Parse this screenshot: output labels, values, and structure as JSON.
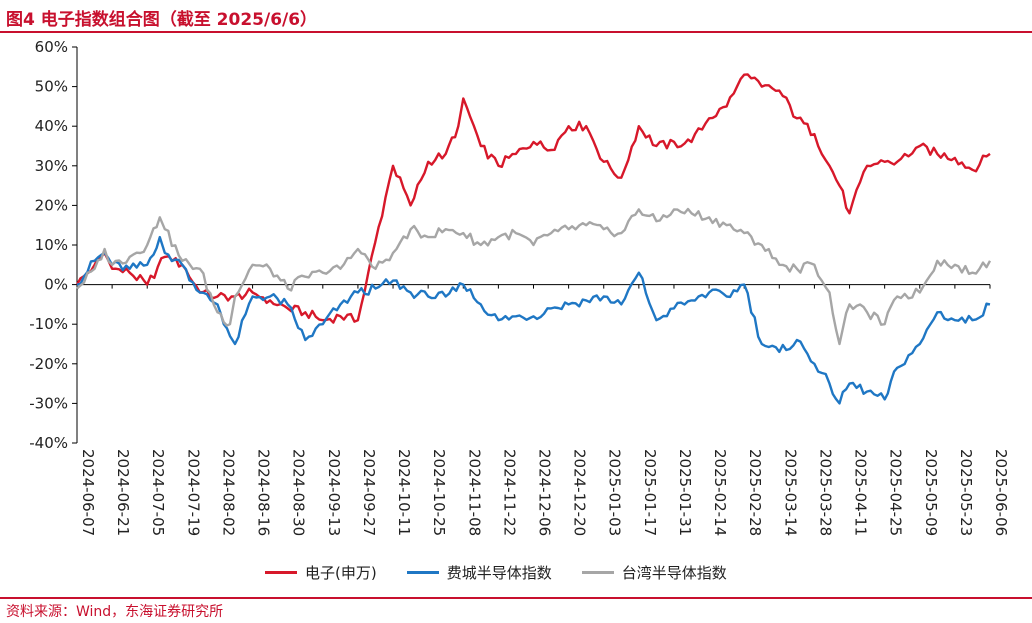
{
  "title": "图4  电子指数组合图（截至 2025/6/6）",
  "source": "资料来源：Wind，东海证券研究所",
  "chart_data": {
    "type": "line",
    "ylim": [
      -40,
      60
    ],
    "yticks": [
      -40,
      -30,
      -20,
      -10,
      0,
      10,
      20,
      30,
      40,
      50,
      60
    ],
    "ytick_labels": [
      "-40%",
      "-30%",
      "-20%",
      "-10%",
      "0%",
      "10%",
      "20%",
      "30%",
      "40%",
      "50%",
      "60%"
    ],
    "xlim": [
      "2024-06-07",
      "2025-06-06"
    ],
    "xticks": [
      "2024-06-07",
      "2024-06-21",
      "2024-07-05",
      "2024-07-19",
      "2024-08-02",
      "2024-08-16",
      "2024-08-30",
      "2024-09-13",
      "2024-09-27",
      "2024-10-11",
      "2024-10-25",
      "2024-11-08",
      "2024-11-22",
      "2024-12-06",
      "2024-12-20",
      "2025-01-03",
      "2025-01-17",
      "2025-01-31",
      "2025-02-14",
      "2025-02-28",
      "2025-03-14",
      "2025-03-28",
      "2025-04-11",
      "2025-04-25",
      "2025-05-09",
      "2025-05-23",
      "2025-06-06"
    ],
    "series": [
      {
        "name": "电子(申万)",
        "color": "#d7182a",
        "x": [
          "2024-06-07",
          "2024-06-14",
          "2024-06-18",
          "2024-06-21",
          "2024-06-28",
          "2024-07-05",
          "2024-07-12",
          "2024-07-15",
          "2024-07-19",
          "2024-07-26",
          "2024-08-02",
          "2024-08-09",
          "2024-08-16",
          "2024-08-23",
          "2024-08-30",
          "2024-09-06",
          "2024-09-13",
          "2024-09-20",
          "2024-09-27",
          "2024-10-08",
          "2024-10-11",
          "2024-10-18",
          "2024-10-25",
          "2024-11-01",
          "2024-11-06",
          "2024-11-08",
          "2024-11-15",
          "2024-11-22",
          "2024-11-29",
          "2024-12-06",
          "2024-12-13",
          "2024-12-20",
          "2024-12-27",
          "2025-01-03",
          "2025-01-10",
          "2025-01-17",
          "2025-01-24",
          "2025-02-07",
          "2025-02-14",
          "2025-02-21",
          "2025-02-28",
          "2025-03-07",
          "2025-03-14",
          "2025-03-21",
          "2025-03-28",
          "2025-04-03",
          "2025-04-07",
          "2025-04-11",
          "2025-04-18",
          "2025-04-25",
          "2025-04-30",
          "2025-05-09",
          "2025-05-16",
          "2025-05-23",
          "2025-05-30",
          "2025-06-06"
        ],
        "y": [
          0,
          5,
          8,
          4,
          3,
          0,
          7,
          6,
          5,
          -2,
          -3,
          -3,
          -2,
          -4,
          -6,
          -7,
          -9,
          -8,
          -9,
          22,
          30,
          20,
          31,
          33,
          40,
          47,
          35,
          30,
          33,
          36,
          34,
          40,
          40,
          31,
          27,
          40,
          35,
          36,
          42,
          45,
          53,
          50,
          49,
          42,
          38,
          30,
          25,
          18,
          30,
          31,
          31,
          35,
          33,
          32,
          29,
          33
        ]
      },
      {
        "name": "费城半导体指数",
        "color": "#1f77c4",
        "x": [
          "2024-06-07",
          "2024-06-14",
          "2024-06-18",
          "2024-06-21",
          "2024-06-28",
          "2024-07-05",
          "2024-07-10",
          "2024-07-12",
          "2024-07-19",
          "2024-07-26",
          "2024-08-02",
          "2024-08-07",
          "2024-08-09",
          "2024-08-16",
          "2024-08-23",
          "2024-08-30",
          "2024-09-06",
          "2024-09-13",
          "2024-09-20",
          "2024-09-27",
          "2024-10-04",
          "2024-10-11",
          "2024-10-18",
          "2024-10-25",
          "2024-11-01",
          "2024-11-08",
          "2024-11-15",
          "2024-11-22",
          "2024-11-29",
          "2024-12-06",
          "2024-12-13",
          "2024-12-20",
          "2024-12-27",
          "2025-01-03",
          "2025-01-10",
          "2025-01-17",
          "2025-01-24",
          "2025-01-31",
          "2025-02-07",
          "2025-02-14",
          "2025-02-21",
          "2025-02-28",
          "2025-03-07",
          "2025-03-14",
          "2025-03-21",
          "2025-03-28",
          "2025-04-03",
          "2025-04-07",
          "2025-04-11",
          "2025-04-18",
          "2025-04-25",
          "2025-04-30",
          "2025-05-09",
          "2025-05-16",
          "2025-05-23",
          "2025-05-30",
          "2025-06-06"
        ],
        "y": [
          0,
          6,
          8,
          5,
          4,
          5,
          12,
          8,
          5,
          -2,
          -5,
          -13,
          -15,
          -3,
          -3,
          -5,
          -14,
          -10,
          -5,
          -2,
          -1,
          1,
          -2,
          -3,
          -3,
          0,
          -5,
          -9,
          -8,
          -8,
          -6,
          -5,
          -4,
          -3,
          -5,
          3,
          -9,
          -6,
          -4,
          -2,
          -3,
          0,
          -15,
          -17,
          -14,
          -20,
          -25,
          -30,
          -25,
          -27,
          -29,
          -21,
          -15,
          -7,
          -9,
          -9,
          -5
        ]
      },
      {
        "name": "台湾半导体指数",
        "color": "#a6a6a6",
        "x": [
          "2024-06-07",
          "2024-06-14",
          "2024-06-18",
          "2024-06-21",
          "2024-06-28",
          "2024-07-05",
          "2024-07-10",
          "2024-07-12",
          "2024-07-19",
          "2024-07-26",
          "2024-08-02",
          "2024-08-07",
          "2024-08-09",
          "2024-08-16",
          "2024-08-23",
          "2024-08-30",
          "2024-09-06",
          "2024-09-13",
          "2024-09-20",
          "2024-09-27",
          "2024-10-04",
          "2024-10-11",
          "2024-10-18",
          "2024-10-25",
          "2024-11-01",
          "2024-11-08",
          "2024-11-15",
          "2024-11-22",
          "2024-11-29",
          "2024-12-06",
          "2024-12-13",
          "2024-12-20",
          "2024-12-27",
          "2025-01-03",
          "2025-01-10",
          "2025-01-17",
          "2025-01-24",
          "2025-01-31",
          "2025-02-07",
          "2025-02-14",
          "2025-02-21",
          "2025-02-28",
          "2025-03-07",
          "2025-03-14",
          "2025-03-21",
          "2025-03-28",
          "2025-04-03",
          "2025-04-07",
          "2025-04-11",
          "2025-04-18",
          "2025-04-25",
          "2025-04-30",
          "2025-05-09",
          "2025-05-16",
          "2025-05-23",
          "2025-05-30",
          "2025-06-06"
        ],
        "y": [
          -1,
          4,
          9,
          5,
          7,
          10,
          17,
          14,
          6,
          4,
          -7,
          -10,
          -3,
          5,
          4,
          -1,
          2,
          3,
          4,
          9,
          4,
          8,
          14,
          12,
          14,
          13,
          10,
          12,
          13,
          10,
          13,
          14,
          15,
          14,
          13,
          19,
          16,
          19,
          18,
          17,
          15,
          13,
          10,
          5,
          4,
          5,
          -2,
          -15,
          -5,
          -7,
          -10,
          -3,
          -2,
          6,
          5,
          3,
          6
        ]
      }
    ]
  }
}
